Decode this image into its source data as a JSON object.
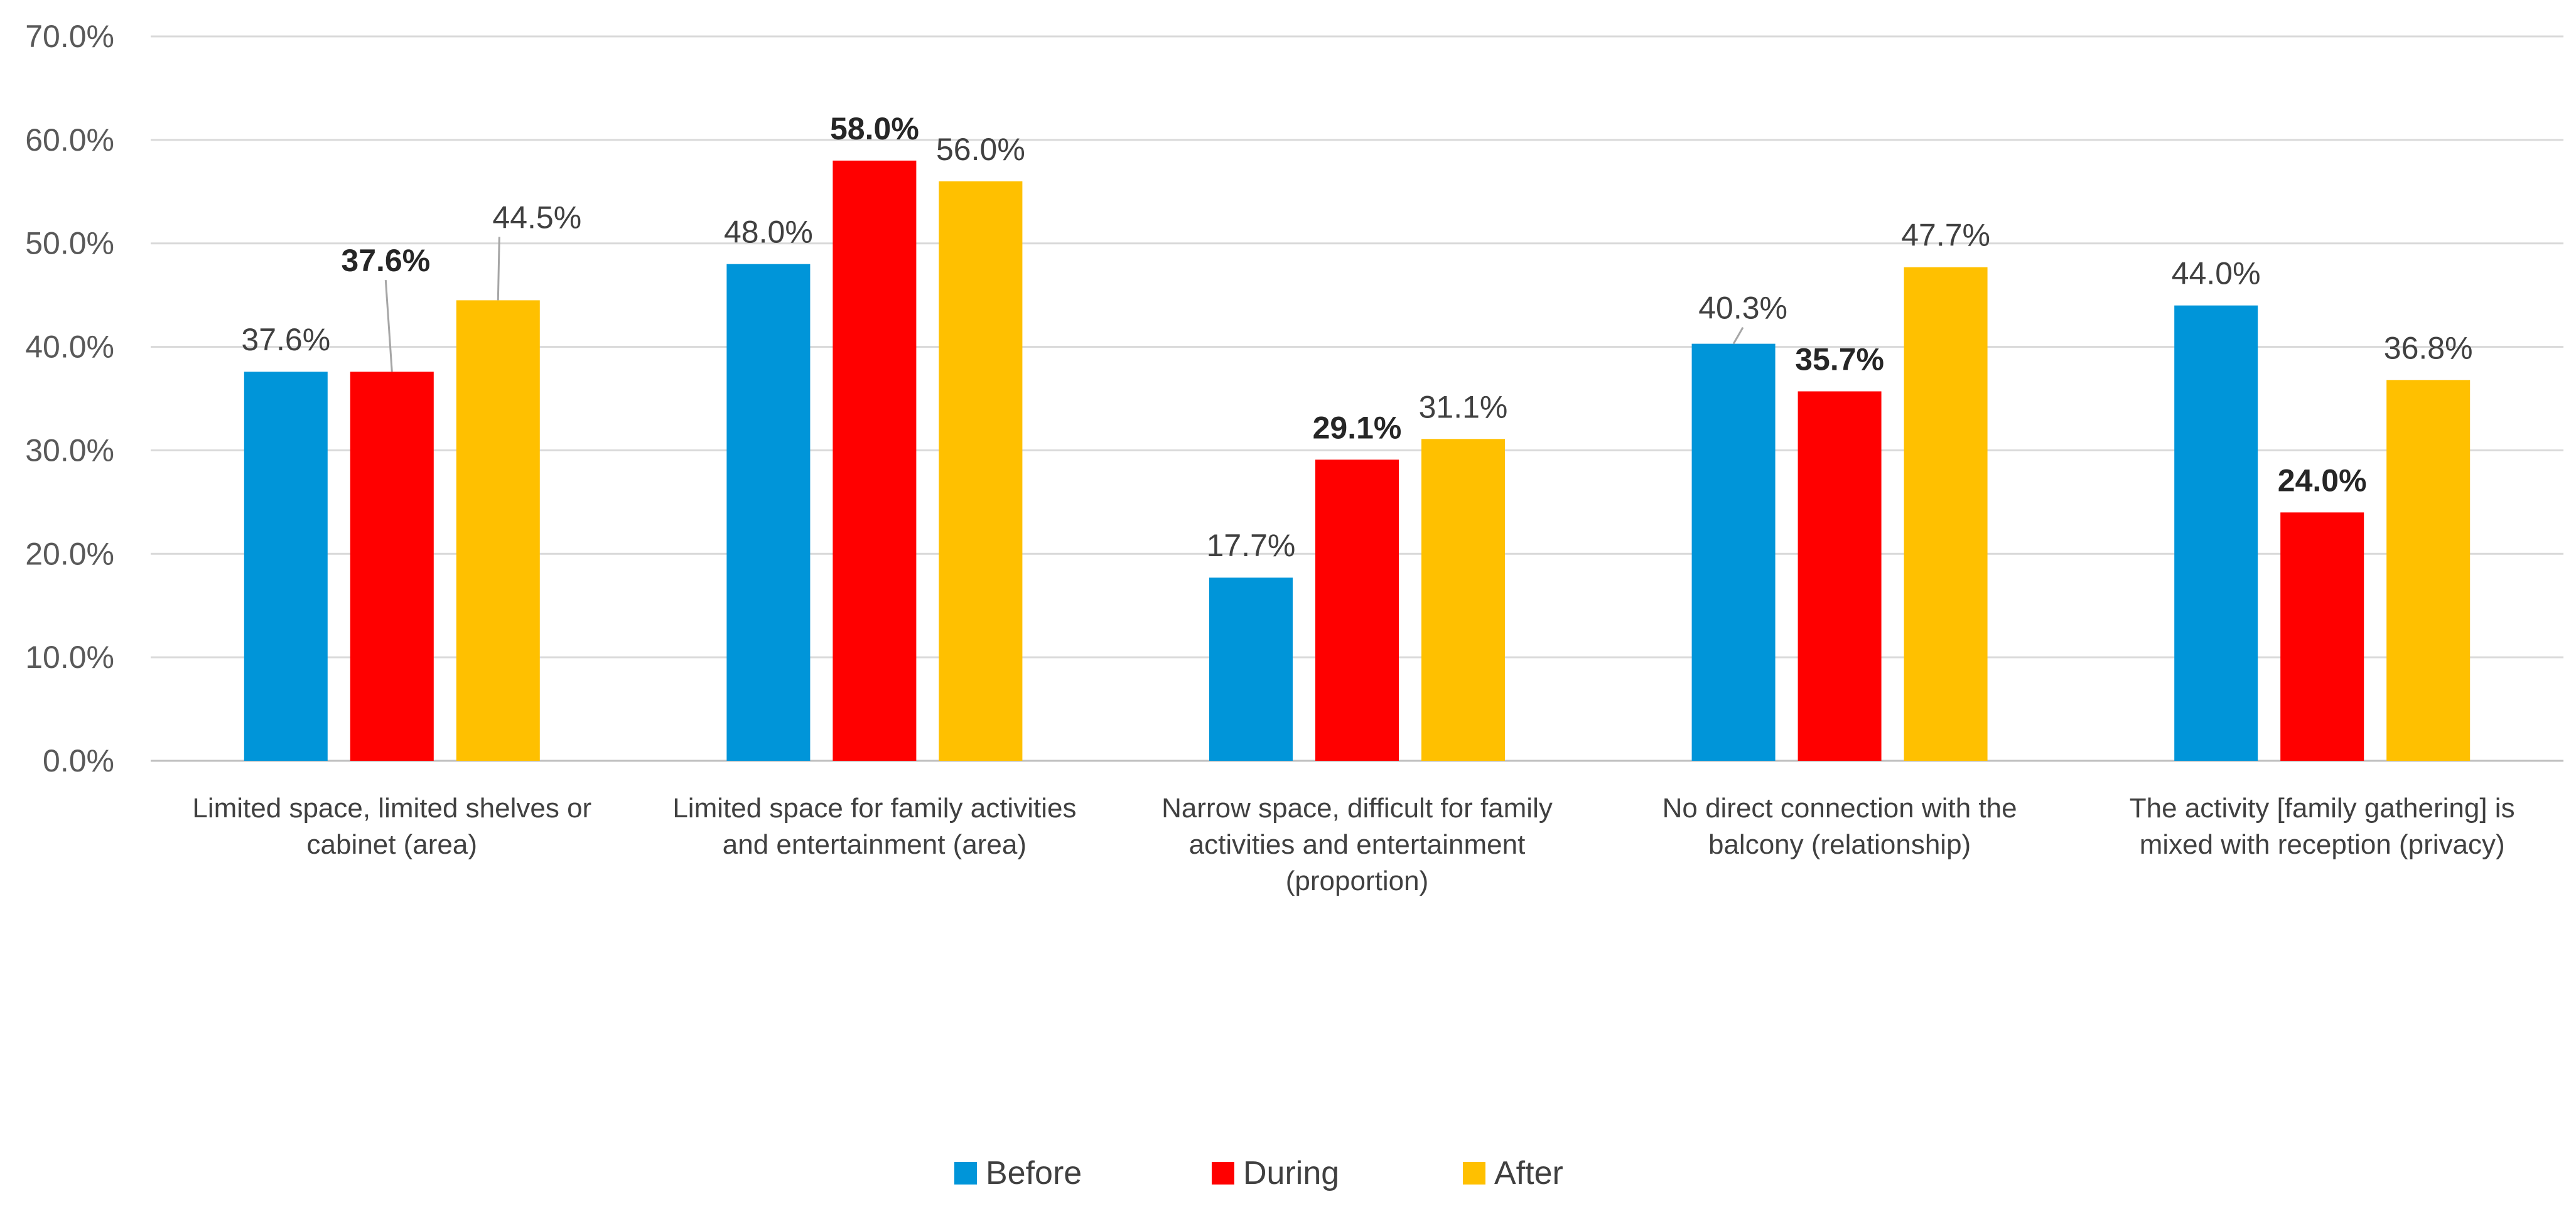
{
  "chart_data": {
    "type": "bar",
    "categories": [
      [
        "Limited space, limited shelves or",
        "cabinet (area)"
      ],
      [
        "Limited space for family activities",
        "and entertainment (area)"
      ],
      [
        "Narrow space, difficult for family",
        "activities and entertainment",
        "(proportion)"
      ],
      [
        "No direct connection with the",
        "balcony (relationship)"
      ],
      [
        "The activity [family gathering] is",
        "mixed with reception (privacy)"
      ]
    ],
    "series": [
      {
        "name": "Before",
        "color": "#0095d9",
        "values": [
          37.6,
          48.0,
          17.7,
          40.3,
          44.0
        ],
        "labels": [
          "37.6%",
          "48.0%",
          "17.7%",
          "40.3%",
          "44.0%"
        ],
        "bold_labels": false
      },
      {
        "name": "During",
        "color": "#ff0000",
        "values": [
          37.6,
          58.0,
          29.1,
          35.7,
          24.0
        ],
        "labels": [
          "37.6%",
          "58.0%",
          "29.1%",
          "35.7%",
          "24.0%"
        ],
        "bold_labels": true
      },
      {
        "name": "After",
        "color": "#ffc000",
        "values": [
          44.5,
          56.0,
          31.1,
          47.7,
          36.8
        ],
        "labels": [
          "44.5%",
          "56.0%",
          "31.1%",
          "47.7%",
          "36.8%"
        ],
        "bold_labels": false
      }
    ],
    "y_ticks": [
      "0.0%",
      "10.0%",
      "20.0%",
      "30.0%",
      "40.0%",
      "50.0%",
      "60.0%",
      "70.0%"
    ],
    "ylim": [
      0,
      70
    ],
    "grid": true,
    "legend_position": "bottom-center",
    "title": "",
    "xlabel": "",
    "ylabel": ""
  }
}
